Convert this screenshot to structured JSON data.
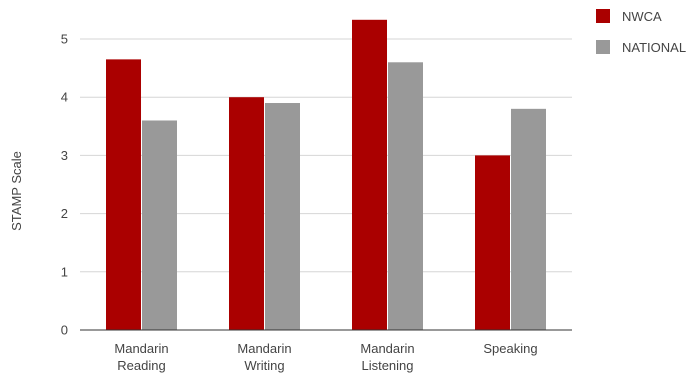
{
  "chart_data": {
    "type": "bar",
    "title": "",
    "xlabel": "",
    "ylabel": "STAMP Scale",
    "ylim": [
      0,
      5.5
    ],
    "yticks": [
      0,
      1,
      2,
      3,
      4,
      5
    ],
    "grid": true,
    "legend_position": "top-right",
    "categories": [
      [
        "Mandarin",
        "Reading"
      ],
      [
        "Mandarin",
        "Writing"
      ],
      [
        "Mandarin",
        "Listening"
      ],
      [
        "Speaking"
      ]
    ],
    "series": [
      {
        "name": "NWCA",
        "color": "#aa0000",
        "values": [
          4.65,
          4.0,
          5.33,
          3.0
        ]
      },
      {
        "name": "NATIONAL",
        "color": "#999999",
        "values": [
          3.6,
          3.9,
          4.6,
          3.8
        ]
      }
    ]
  }
}
